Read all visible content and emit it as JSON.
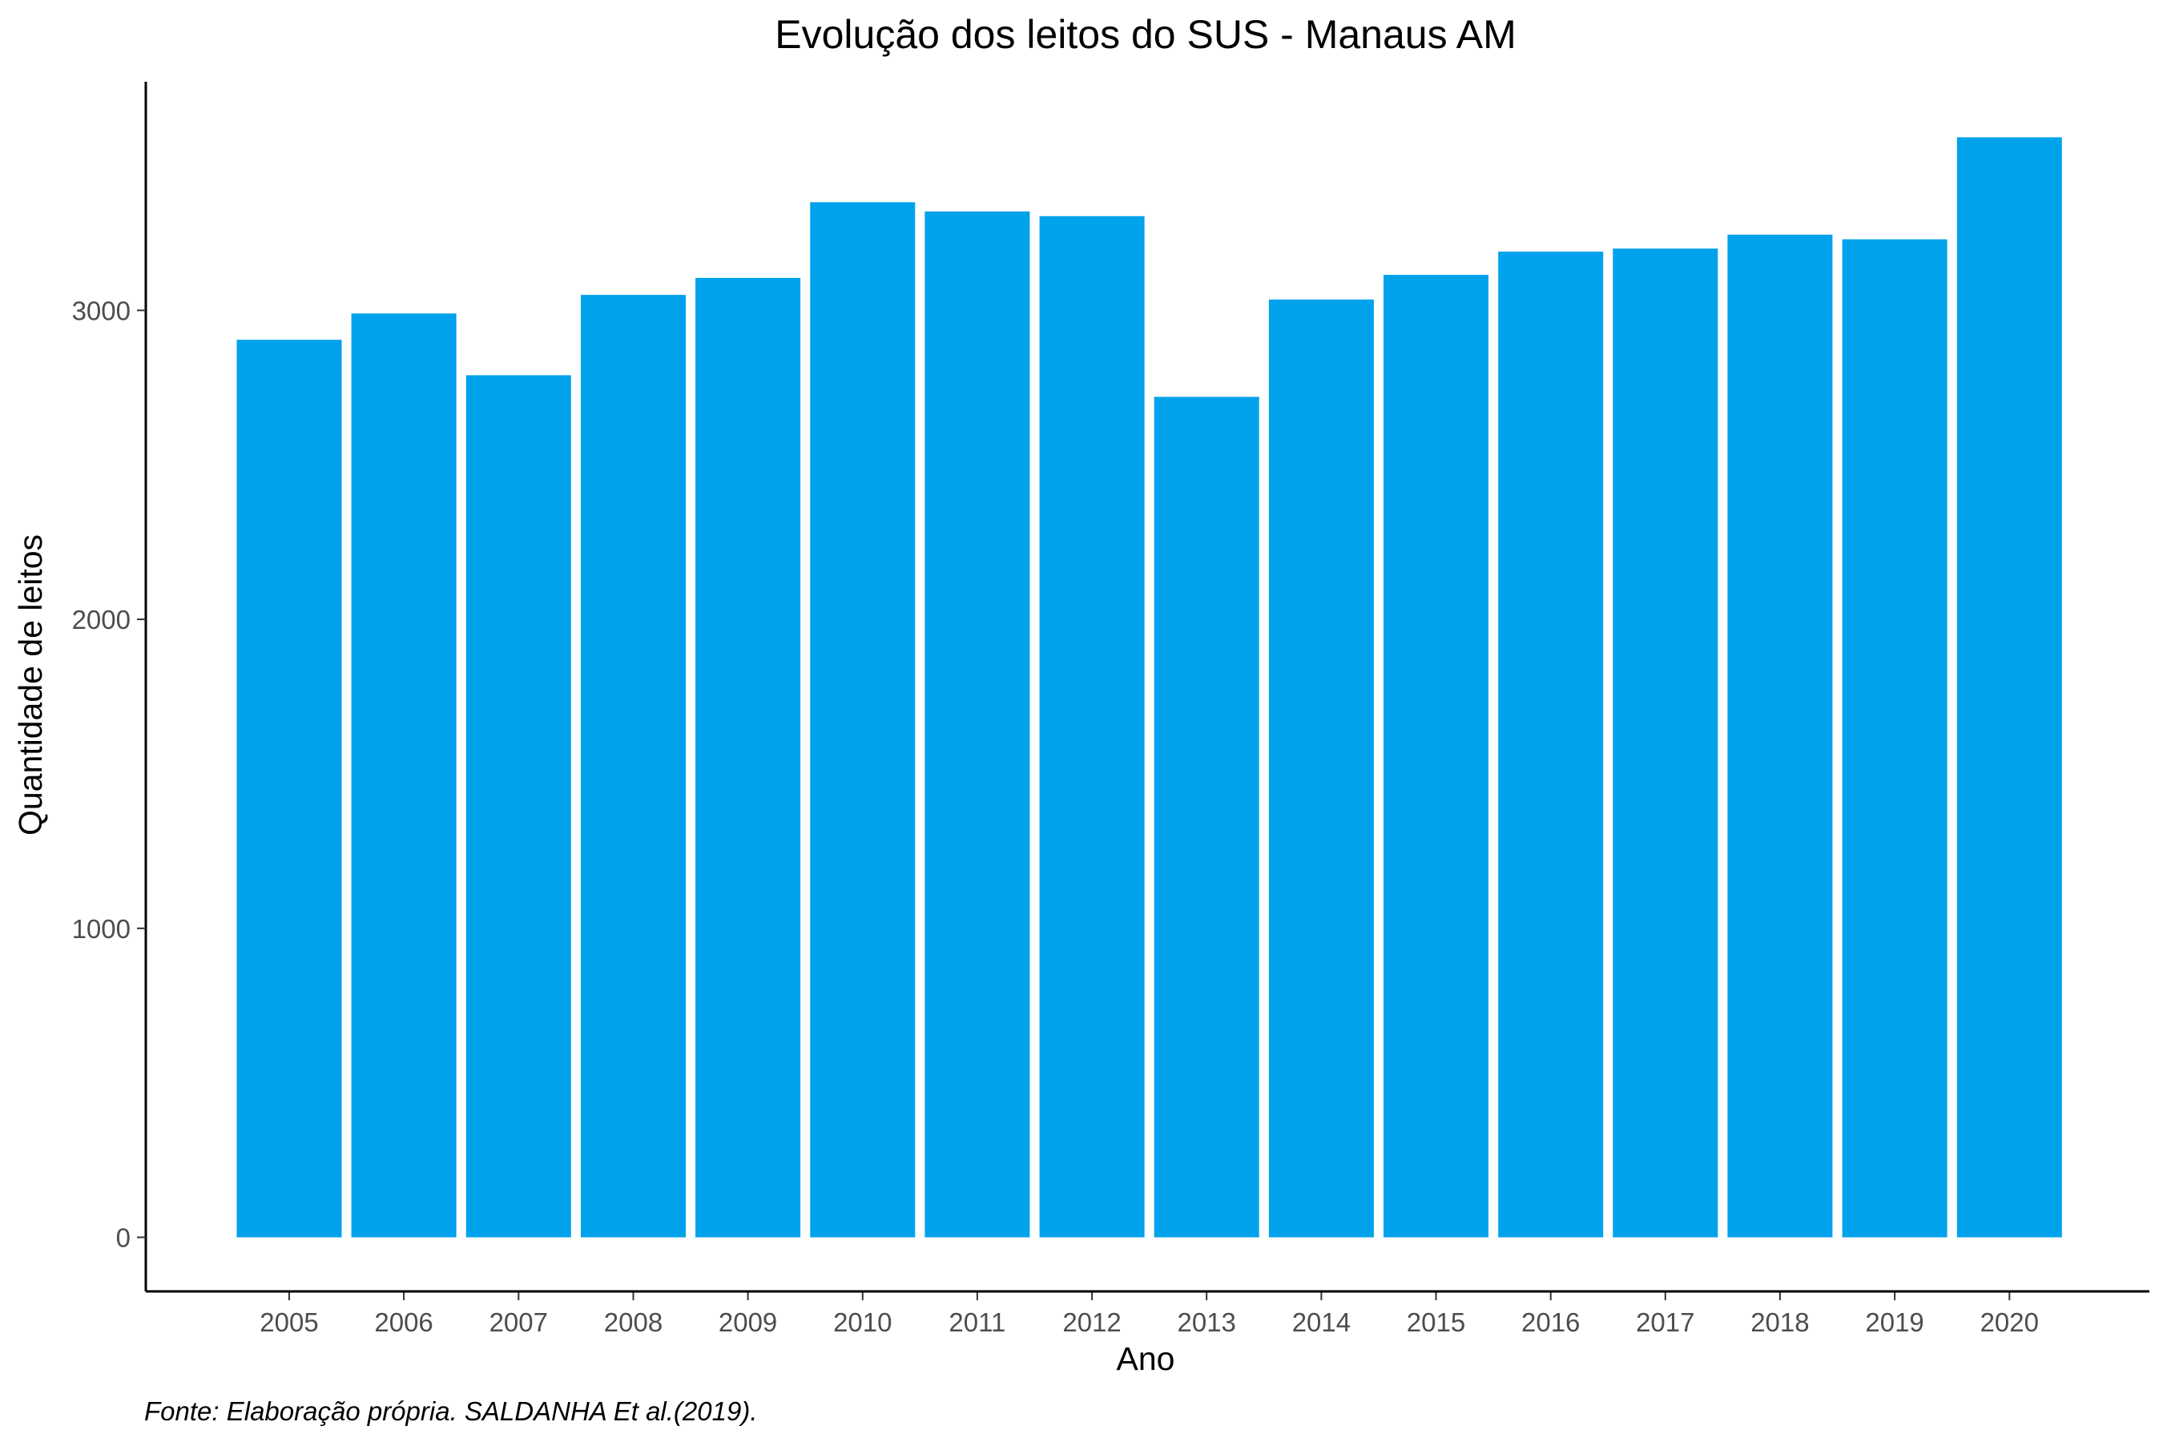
{
  "chart_data": {
    "type": "bar",
    "title": "Evolução dos leitos do SUS -  Manaus AM",
    "xlabel": "Ano",
    "ylabel": "Quantidade de leitos",
    "caption": "Fonte: Elaboração própria. SALDANHA Et al.(2019).",
    "categories": [
      "2005",
      "2006",
      "2007",
      "2008",
      "2009",
      "2010",
      "2011",
      "2012",
      "2013",
      "2014",
      "2015",
      "2016",
      "2017",
      "2018",
      "2019",
      "2020"
    ],
    "values": [
      2905,
      2990,
      2790,
      3050,
      3105,
      3350,
      3320,
      3305,
      2720,
      3035,
      3115,
      3190,
      3200,
      3245,
      3230,
      3560
    ],
    "ylim": [
      -175,
      3740
    ],
    "yticks": [
      0,
      1000,
      2000,
      3000
    ],
    "grid": false,
    "legend": "none",
    "bar_color": "#00A2EC"
  }
}
